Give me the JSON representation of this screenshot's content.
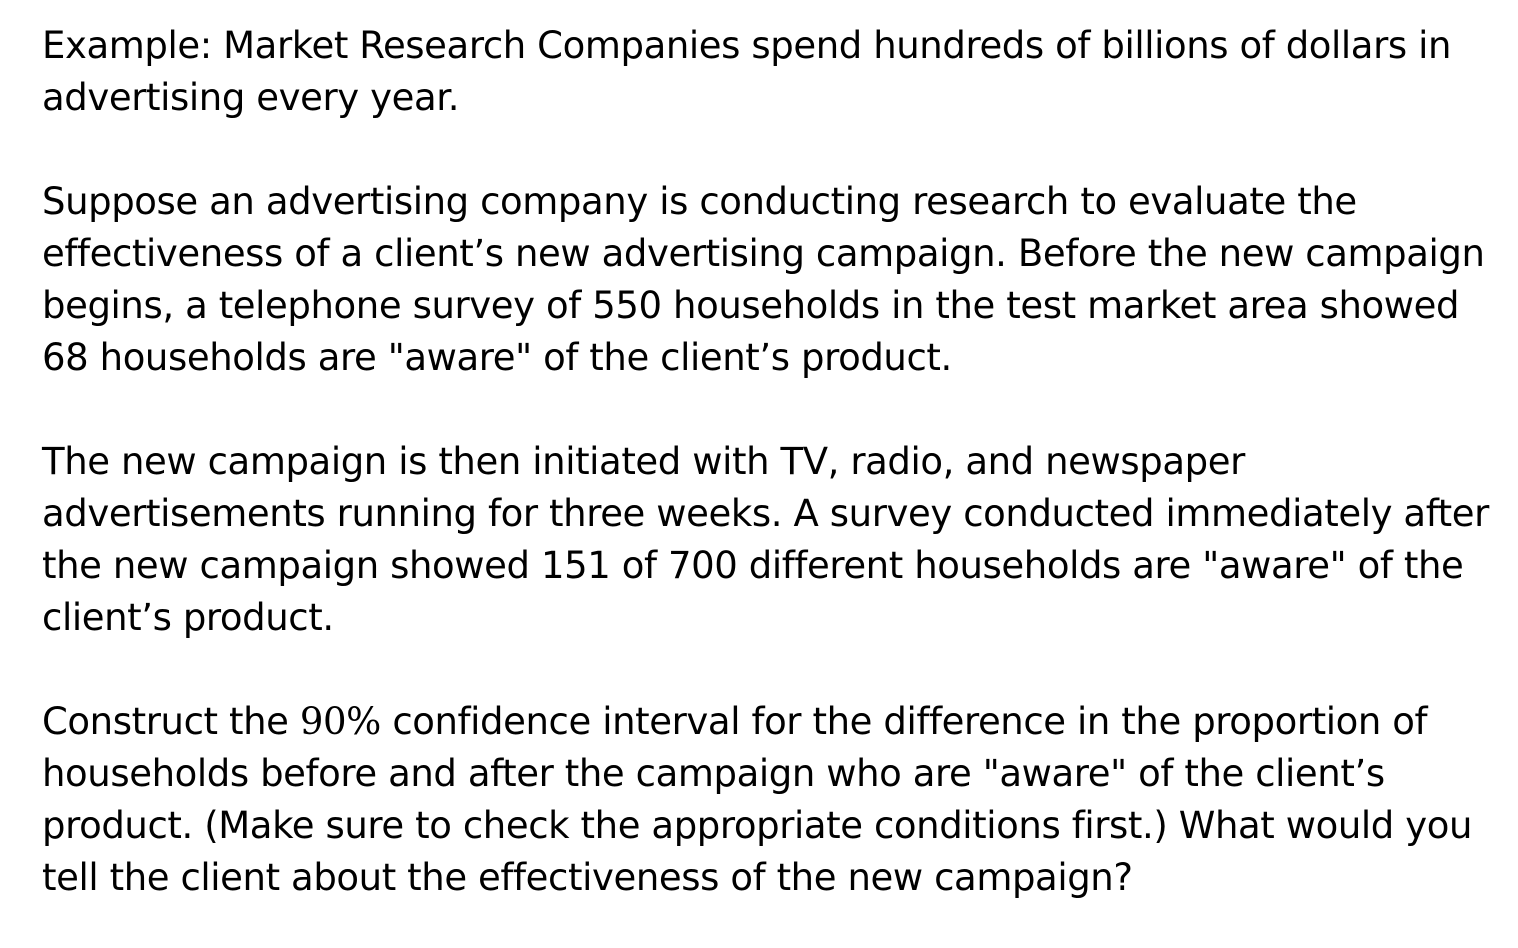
{
  "document": {
    "intro": "Example: Market Research Companies spend hundreds of billions of dollars in advertising every year.",
    "scenario": "Suppose an advertising company is conducting research to evaluate the effectiveness of a client’s new advertising campaign. Before the new campaign begins, a telephone survey of 550 households in the test market area showed 68 households are \"aware\" of the client’s product.",
    "followup": "The new campaign is then initiated with TV, radio, and newspaper advertisements running for three weeks. A survey conducted immediately after the new campaign showed 151 of 700 different households are \"aware\" of the client’s product.",
    "question_prefix": "Construct the",
    "question_math": "90%",
    "question_rest": "confidence interval for the difference in the proportion of households before and after the campaign who are \"aware\" of the client’s product. (Make sure to check the appropriate conditions first.) What would you tell the client about the effectiveness of the new campaign?"
  }
}
